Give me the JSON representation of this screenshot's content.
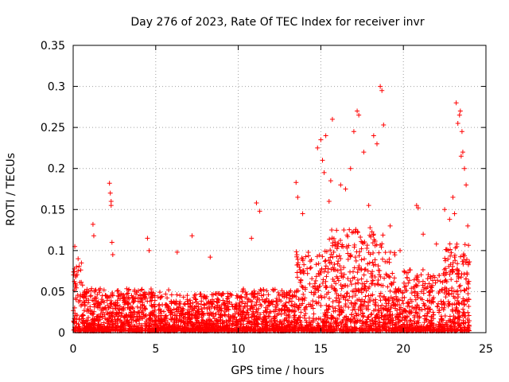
{
  "chart_data": {
    "type": "scatter",
    "title": "Day 276 of 2023, Rate Of TEC Index for receiver invr",
    "xlabel": "GPS time / hours",
    "ylabel": "ROTI / TECUs",
    "xlim": [
      0,
      25
    ],
    "ylim": [
      0,
      0.35
    ],
    "xticks": [
      "0",
      "5",
      "10",
      "15",
      "20",
      "25"
    ],
    "yticks": [
      "0",
      "0.05",
      "0.1",
      "0.15",
      "0.2",
      "0.25",
      "0.3",
      "0.35"
    ],
    "grid": true,
    "marker": "plus",
    "color": "#ff0000",
    "series": [
      {
        "name": "ROTI",
        "x": [
          0.1,
          0.2,
          0.3,
          0.5,
          1.2,
          1.25,
          2.2,
          2.25,
          2.3,
          2.3,
          2.35,
          2.4,
          4.5,
          4.6,
          6.3,
          7.2,
          8.3,
          10.8,
          11.1,
          11.3,
          13.5,
          13.6,
          13.9,
          14.8,
          15.0,
          15.1,
          15.2,
          15.3,
          15.5,
          15.6,
          15.7,
          16.2,
          16.5,
          16.8,
          17.0,
          17.2,
          17.3,
          17.6,
          17.9,
          18.2,
          18.4,
          18.6,
          18.7,
          18.8,
          19.2,
          19.8,
          20.8,
          20.9,
          21.2,
          22.0,
          22.5,
          22.8,
          23.0,
          23.1,
          23.2,
          23.3,
          23.4,
          23.45,
          23.5,
          23.55,
          23.6,
          23.7,
          23.8,
          23.9
        ],
        "y": [
          0.105,
          0.08,
          0.09,
          0.085,
          0.132,
          0.118,
          0.182,
          0.17,
          0.16,
          0.155,
          0.11,
          0.095,
          0.115,
          0.1,
          0.098,
          0.118,
          0.092,
          0.115,
          0.158,
          0.148,
          0.183,
          0.165,
          0.145,
          0.225,
          0.235,
          0.21,
          0.195,
          0.24,
          0.16,
          0.185,
          0.26,
          0.18,
          0.175,
          0.2,
          0.245,
          0.27,
          0.265,
          0.22,
          0.155,
          0.24,
          0.23,
          0.3,
          0.295,
          0.253,
          0.13,
          0.1,
          0.155,
          0.152,
          0.12,
          0.108,
          0.15,
          0.138,
          0.165,
          0.145,
          0.28,
          0.255,
          0.265,
          0.27,
          0.215,
          0.245,
          0.22,
          0.2,
          0.18,
          0.13
        ]
      }
    ]
  }
}
